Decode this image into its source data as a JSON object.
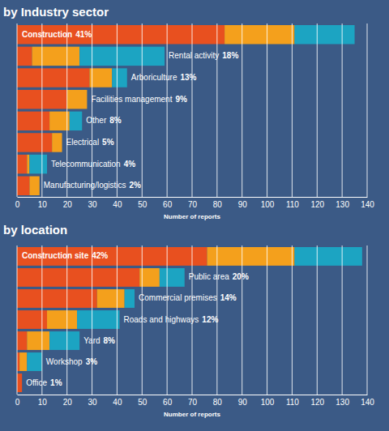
{
  "chart_data": [
    {
      "type": "bar",
      "title": "by Industry sector",
      "orientation": "horizontal",
      "stacked": true,
      "grid": true,
      "categories": [
        "Construction",
        "Rental activity",
        "Arboriculture",
        "Facilities management",
        "Other",
        "Electrical",
        "Telecommunication",
        "Manufacturing/logistics"
      ],
      "share_labels": [
        "41%",
        "18%",
        "13%",
        "9%",
        "8%",
        "5%",
        "4%",
        "2%"
      ],
      "series": [
        {
          "color": "#e8501f",
          "values": [
            83,
            6,
            29,
            20,
            13,
            14,
            4,
            5
          ]
        },
        {
          "color": "#f4a01c",
          "values": [
            28,
            19,
            9,
            8,
            8,
            4,
            1,
            4
          ]
        },
        {
          "color": "#1ca4c2",
          "values": [
            24,
            34,
            6,
            0,
            5,
            0,
            7,
            0
          ]
        }
      ],
      "xlabel": "Number of reports",
      "xlim": [
        0,
        140
      ],
      "xticks": [
        0,
        10,
        20,
        30,
        40,
        50,
        60,
        70,
        80,
        90,
        100,
        110,
        120,
        130,
        140
      ]
    },
    {
      "type": "bar",
      "title": "by location",
      "orientation": "horizontal",
      "stacked": true,
      "grid": true,
      "categories": [
        "Construction site",
        "Public area",
        "Commercial premises",
        "Roads and highways",
        "Yard",
        "Workshop",
        "Office"
      ],
      "share_labels": [
        "42%",
        "20%",
        "14%",
        "12%",
        "8%",
        "3%",
        "1%"
      ],
      "series": [
        {
          "color": "#e8501f",
          "values": [
            76,
            49,
            32,
            12,
            4,
            1,
            2
          ]
        },
        {
          "color": "#f4a01c",
          "values": [
            35,
            8,
            11,
            12,
            9,
            3,
            0
          ]
        },
        {
          "color": "#1ca4c2",
          "values": [
            27,
            10,
            4,
            17,
            12,
            6,
            0
          ]
        }
      ],
      "xlabel": "Number of reports",
      "xlim": [
        0,
        140
      ],
      "xticks": [
        0,
        10,
        20,
        30,
        40,
        50,
        60,
        70,
        80,
        90,
        100,
        110,
        120,
        130,
        140
      ]
    }
  ]
}
